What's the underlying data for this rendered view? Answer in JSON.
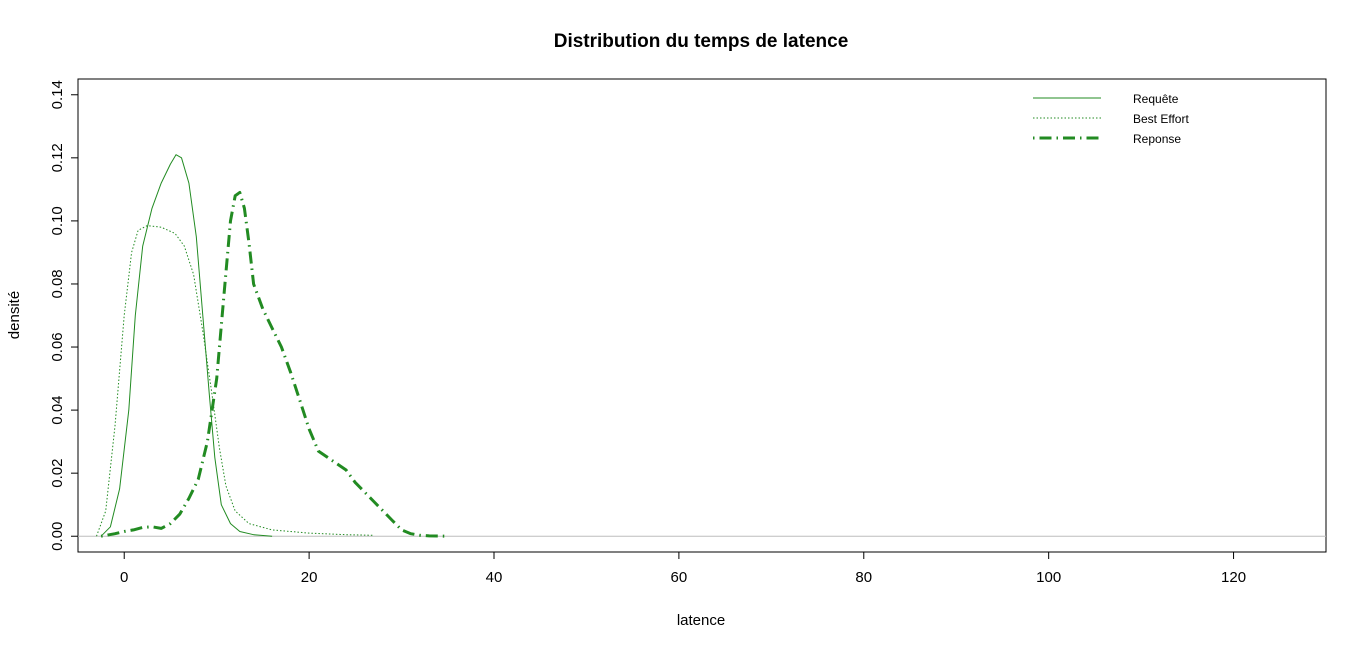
{
  "chart_data": {
    "type": "line",
    "title": "Distribution du temps de latence",
    "xlabel": "latence",
    "ylabel": "densité",
    "xlim": [
      -5,
      130
    ],
    "ylim": [
      -0.005,
      0.145
    ],
    "xticks": [
      "0",
      "20",
      "40",
      "60",
      "80",
      "100",
      "120"
    ],
    "yticks": [
      "0.00",
      "0.02",
      "0.04",
      "0.06",
      "0.08",
      "0.10",
      "0.12",
      "0.14"
    ],
    "baseline": 0,
    "legend_position": "top-right",
    "series": [
      {
        "name": "Requête",
        "style": "solid",
        "color": "#228b22",
        "points": [
          [
            -2.5,
            0
          ],
          [
            -1.5,
            0.003
          ],
          [
            -0.5,
            0.015
          ],
          [
            0.5,
            0.04
          ],
          [
            1.2,
            0.07
          ],
          [
            2,
            0.092
          ],
          [
            3,
            0.104
          ],
          [
            4,
            0.112
          ],
          [
            5,
            0.118
          ],
          [
            5.6,
            0.121
          ],
          [
            6.2,
            0.12
          ],
          [
            7,
            0.112
          ],
          [
            7.8,
            0.095
          ],
          [
            8.5,
            0.07
          ],
          [
            9.2,
            0.045
          ],
          [
            9.8,
            0.025
          ],
          [
            10.5,
            0.01
          ],
          [
            11.5,
            0.004
          ],
          [
            12.5,
            0.0015
          ],
          [
            14,
            0.0005
          ],
          [
            16,
            0
          ]
        ]
      },
      {
        "name": "Best Effort",
        "style": "dotted",
        "color": "#228b22",
        "points": [
          [
            -3,
            0
          ],
          [
            -2,
            0.008
          ],
          [
            -1,
            0.035
          ],
          [
            0,
            0.07
          ],
          [
            0.8,
            0.09
          ],
          [
            1.5,
            0.097
          ],
          [
            2.5,
            0.0985
          ],
          [
            4,
            0.098
          ],
          [
            5.5,
            0.096
          ],
          [
            6.5,
            0.092
          ],
          [
            7.5,
            0.083
          ],
          [
            8.5,
            0.065
          ],
          [
            9.5,
            0.045
          ],
          [
            10.3,
            0.028
          ],
          [
            11,
            0.016
          ],
          [
            12,
            0.008
          ],
          [
            13.5,
            0.004
          ],
          [
            16,
            0.002
          ],
          [
            20,
            0.001
          ],
          [
            24,
            0.0005
          ],
          [
            27,
            0.0003
          ]
        ]
      },
      {
        "name": "Reponse",
        "style": "dotdash",
        "color": "#228b22",
        "points": [
          [
            -2.5,
            0
          ],
          [
            -1,
            0.0008
          ],
          [
            0,
            0.0015
          ],
          [
            1,
            0.002
          ],
          [
            2,
            0.0028
          ],
          [
            3,
            0.003
          ],
          [
            4,
            0.0025
          ],
          [
            5,
            0.004
          ],
          [
            6,
            0.007
          ],
          [
            7,
            0.012
          ],
          [
            8,
            0.018
          ],
          [
            9,
            0.03
          ],
          [
            10,
            0.05
          ],
          [
            10.8,
            0.077
          ],
          [
            11.5,
            0.1
          ],
          [
            12,
            0.108
          ],
          [
            12.5,
            0.109
          ],
          [
            13,
            0.104
          ],
          [
            13.5,
            0.093
          ],
          [
            14,
            0.08
          ],
          [
            15,
            0.072
          ],
          [
            16,
            0.066
          ],
          [
            17,
            0.06
          ],
          [
            18,
            0.052
          ],
          [
            19,
            0.043
          ],
          [
            20,
            0.034
          ],
          [
            21,
            0.027
          ],
          [
            22,
            0.025
          ],
          [
            23,
            0.023
          ],
          [
            24,
            0.021
          ],
          [
            25,
            0.017
          ],
          [
            26,
            0.014
          ],
          [
            27,
            0.011
          ],
          [
            28,
            0.008
          ],
          [
            29,
            0.005
          ],
          [
            30,
            0.002
          ],
          [
            31,
            0.0008
          ],
          [
            32,
            0.0003
          ],
          [
            33,
            0.0001
          ],
          [
            35,
            0
          ]
        ]
      }
    ]
  }
}
